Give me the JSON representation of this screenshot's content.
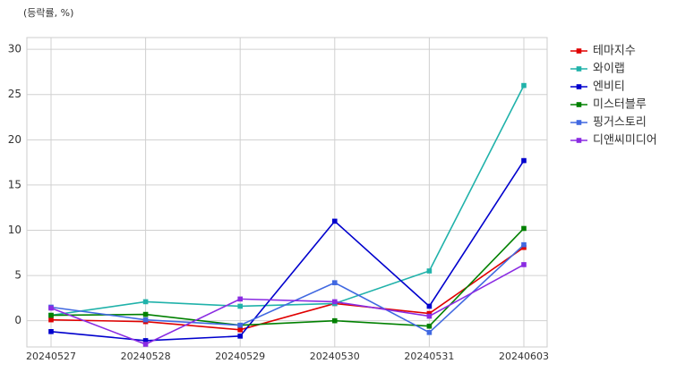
{
  "chart_data": {
    "type": "line",
    "y_label": "(등락률, %)",
    "categories": [
      "20240527",
      "20240528",
      "20240529",
      "20240530",
      "20240531",
      "20240603"
    ],
    "series": [
      {
        "name": "테마지수",
        "color": "#e00000",
        "values": [
          0.1,
          -0.1,
          -1.0,
          1.9,
          0.8,
          8.1
        ]
      },
      {
        "name": "와이랩",
        "color": "#20b2aa",
        "values": [
          0.6,
          2.1,
          1.6,
          1.9,
          5.5,
          26.0
        ]
      },
      {
        "name": "엔비티",
        "color": "#0000cd",
        "values": [
          -1.2,
          -2.2,
          -1.7,
          11.0,
          1.6,
          17.7
        ]
      },
      {
        "name": "미스터블루",
        "color": "#008000",
        "values": [
          0.6,
          0.7,
          -0.5,
          0.0,
          -0.6,
          10.2
        ]
      },
      {
        "name": "핑거스토리",
        "color": "#4169e1",
        "values": [
          1.5,
          0.1,
          -0.5,
          4.2,
          -1.3,
          8.4
        ]
      },
      {
        "name": "디앤씨미디어",
        "color": "#8a2be2",
        "values": [
          1.4,
          -2.6,
          2.4,
          2.1,
          0.5,
          6.2
        ]
      }
    ],
    "ylim": [
      -2.9,
      31.3
    ],
    "yticks": [
      0,
      5,
      10,
      15,
      20,
      25,
      30
    ],
    "grid": true,
    "legend": "outside-right"
  }
}
